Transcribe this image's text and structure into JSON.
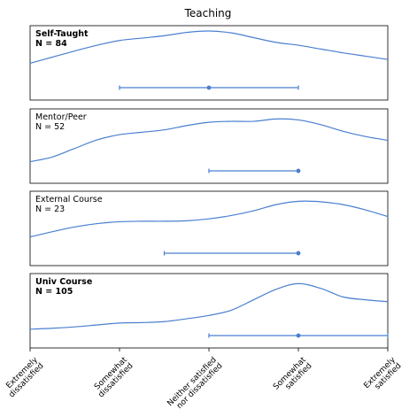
{
  "chart_data": {
    "type": "line",
    "title": "Teaching",
    "x_categories": [
      "Extremely\ndissatisfied",
      "Somewhat\ndissatisfied",
      "Neither satisfied\nnor dissatisfied",
      "Somewhat\nsatisfied",
      "Extremely\nsatisfied"
    ],
    "x_range": [
      1,
      5
    ],
    "colors": {
      "line": "#4a7fd0",
      "frame": "#000000"
    },
    "panels": [
      {
        "name": "Self-Taught",
        "n_label": "N = 84",
        "bold": true,
        "density": {
          "x": [
            1.0,
            1.25,
            1.5,
            1.75,
            2.0,
            2.25,
            2.5,
            2.75,
            3.0,
            3.25,
            3.5,
            3.75,
            4.0,
            4.25,
            4.5,
            4.75,
            5.0
          ],
          "y": [
            0.42,
            0.55,
            0.68,
            0.8,
            0.9,
            0.95,
            1.0,
            1.07,
            1.1,
            1.06,
            0.96,
            0.86,
            0.8,
            0.72,
            0.64,
            0.57,
            0.5
          ]
        },
        "interval": {
          "low": 2.0,
          "median": 3.0,
          "high": 4.0
        }
      },
      {
        "name": "Mentor/Peer",
        "n_label": "N = 52",
        "bold": false,
        "density": {
          "x": [
            1.0,
            1.25,
            1.5,
            1.75,
            2.0,
            2.25,
            2.5,
            2.75,
            3.0,
            3.25,
            3.5,
            3.75,
            4.0,
            4.25,
            4.5,
            4.75,
            5.0
          ],
          "y": [
            0.1,
            0.2,
            0.38,
            0.56,
            0.67,
            0.72,
            0.77,
            0.86,
            0.93,
            0.95,
            0.95,
            1.0,
            0.98,
            0.88,
            0.74,
            0.63,
            0.55
          ]
        },
        "interval": {
          "low": 3.0,
          "median": 4.0,
          "high": 4.0
        }
      },
      {
        "name": "External Course",
        "n_label": "N = 23",
        "bold": false,
        "density": {
          "x": [
            1.0,
            1.25,
            1.5,
            1.75,
            2.0,
            2.25,
            2.5,
            2.75,
            3.0,
            3.25,
            3.5,
            3.75,
            4.0,
            4.25,
            4.5,
            4.75,
            5.0
          ],
          "y": [
            0.25,
            0.36,
            0.46,
            0.53,
            0.57,
            0.58,
            0.58,
            0.59,
            0.63,
            0.7,
            0.8,
            0.93,
            1.0,
            0.99,
            0.93,
            0.82,
            0.68
          ]
        },
        "interval": {
          "low": 2.5,
          "median": 4.0,
          "high": 4.0
        }
      },
      {
        "name": "Univ Course",
        "n_label": "N = 105",
        "bold": true,
        "density": {
          "x": [
            1.0,
            1.25,
            1.5,
            1.75,
            2.0,
            2.25,
            2.5,
            2.75,
            3.0,
            3.25,
            3.5,
            3.75,
            4.0,
            4.25,
            4.5,
            4.75,
            5.0
          ],
          "y": [
            0.04,
            0.06,
            0.09,
            0.13,
            0.17,
            0.18,
            0.2,
            0.26,
            0.33,
            0.44,
            0.66,
            0.88,
            1.0,
            0.9,
            0.72,
            0.66,
            0.62
          ]
        },
        "interval": {
          "low": 3.0,
          "median": 4.0,
          "high": 5.0
        }
      }
    ]
  }
}
